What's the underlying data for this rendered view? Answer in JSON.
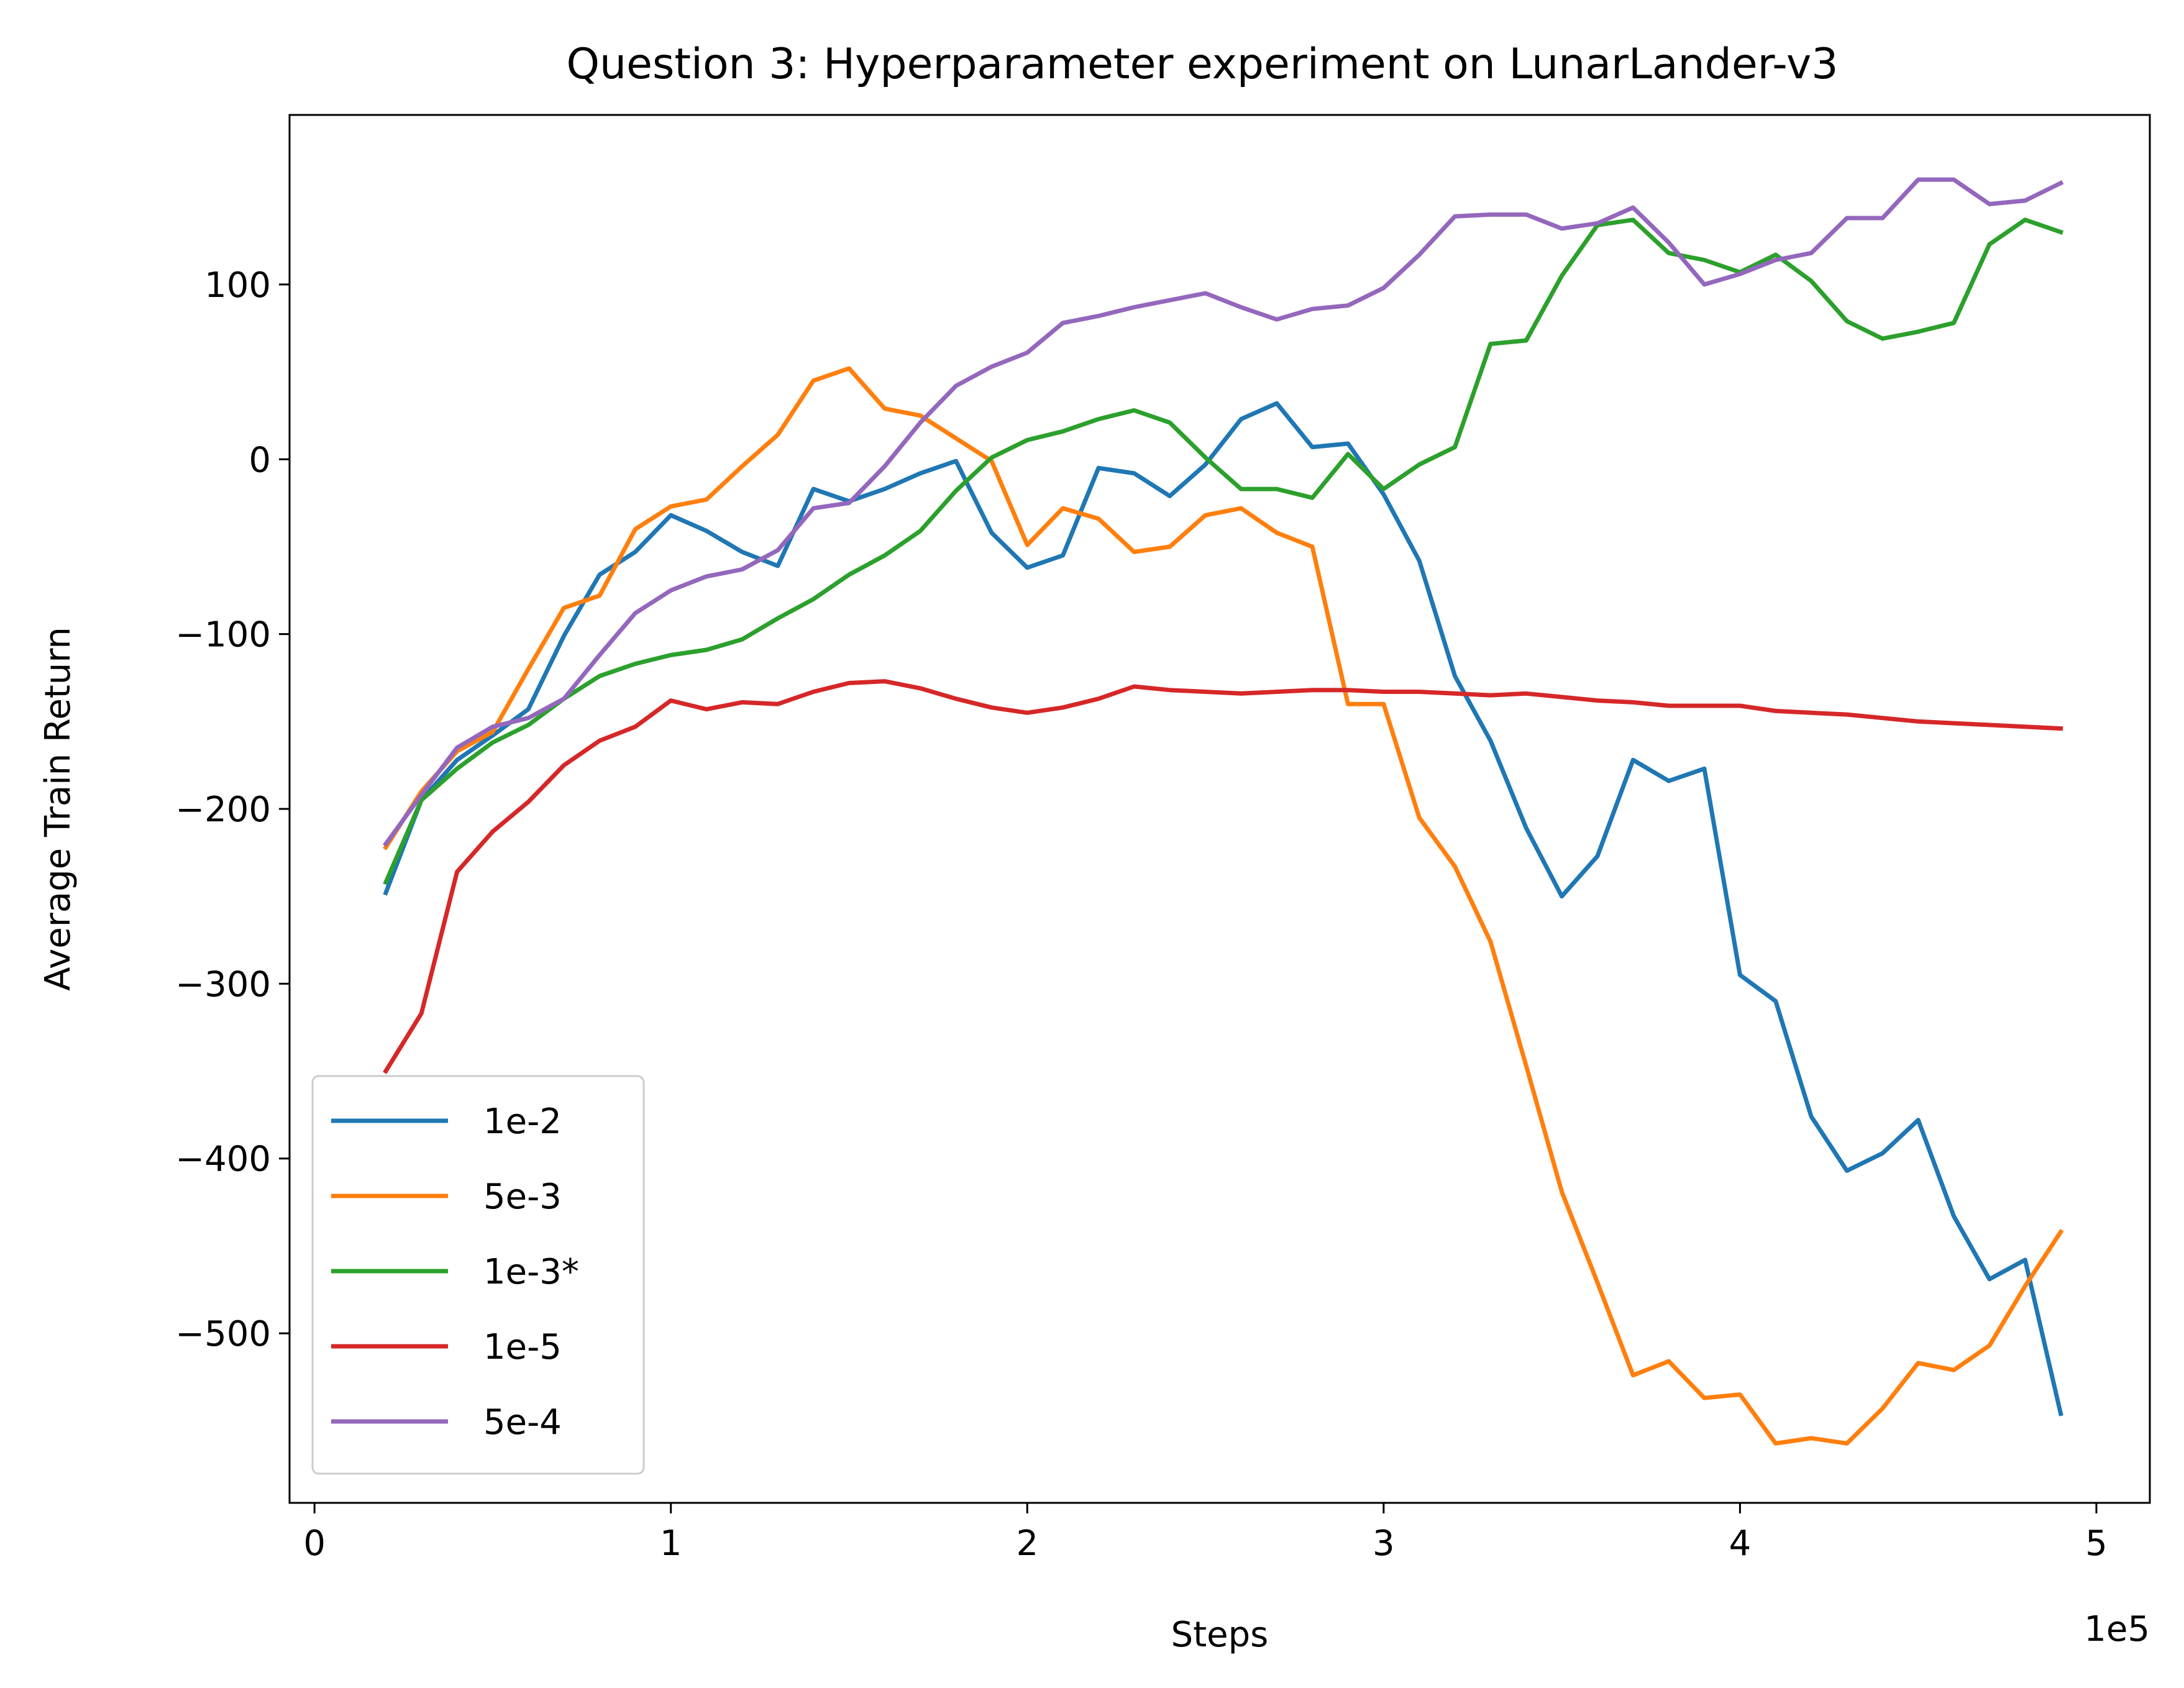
{
  "chart_data": {
    "type": "line",
    "title": "Question 3: Hyperparameter experiment on LunarLander-v3",
    "xlabel": "Steps",
    "ylabel": "Average Train Return",
    "x_offset_label": "1e5",
    "xlim": [
      -0.07,
      5.15
    ],
    "ylim": [
      -597,
      197
    ],
    "xticks": [
      0,
      1,
      2,
      3,
      4,
      5
    ],
    "xtick_labels": [
      "0",
      "1",
      "2",
      "3",
      "4",
      "5"
    ],
    "yticks": [
      -500,
      -400,
      -300,
      -200,
      -100,
      0,
      100
    ],
    "ytick_labels": [
      "−500",
      "−400",
      "−300",
      "−200",
      "−100",
      "0",
      "100"
    ],
    "grid": false,
    "legend_position": "lower-left",
    "x": [
      0.2,
      0.3,
      0.4,
      0.5,
      0.6,
      0.7,
      0.8,
      0.9,
      1.0,
      1.1,
      1.2,
      1.3,
      1.4,
      1.5,
      1.6,
      1.7,
      1.8,
      1.9,
      2.0,
      2.1,
      2.2,
      2.3,
      2.4,
      2.5,
      2.6,
      2.7,
      2.8,
      2.9,
      3.0,
      3.1,
      3.2,
      3.3,
      3.4,
      3.5,
      3.6,
      3.7,
      3.8,
      3.9,
      4.0,
      4.1,
      4.2,
      4.3,
      4.4,
      4.5,
      4.6,
      4.7,
      4.8,
      4.9
    ],
    "series": [
      {
        "name": "1e-2",
        "color": "#1f77b4",
        "values": [
          -248,
          -195,
          -172,
          -158,
          -143,
          -101,
          -66,
          -53,
          -32,
          -41,
          -53,
          -61,
          -17,
          -24,
          -17,
          -8,
          -1,
          -42,
          -62,
          -55,
          -5,
          -8,
          -21,
          -3,
          23,
          32,
          7,
          9,
          -20,
          -58,
          -124,
          -161,
          -211,
          -250,
          -227,
          -172,
          -184,
          -177,
          -295,
          -310,
          -376,
          -407,
          -397,
          -378,
          -433,
          -469,
          -458,
          -546
        ]
      },
      {
        "name": "5e-3",
        "color": "#ff7f0e",
        "values": [
          -222,
          -190,
          -167,
          -156,
          -120,
          -85,
          -78,
          -40,
          -27,
          -23,
          -4,
          14,
          45,
          52,
          29,
          25,
          12,
          -1,
          -49,
          -28,
          -34,
          -53,
          -50,
          -32,
          -28,
          -42,
          -50,
          -140,
          -140,
          -205,
          -233,
          -276,
          -347,
          -419,
          -471,
          -524,
          -516,
          -537,
          -535,
          -563,
          -560,
          -563,
          -543,
          -517,
          -521,
          -507,
          -473,
          -442
        ]
      },
      {
        "name": "1e-3*",
        "color": "#2ca02c",
        "values": [
          -242,
          -195,
          -177,
          -162,
          -152,
          -137,
          -124,
          -117,
          -112,
          -109,
          -103,
          -91,
          -80,
          -66,
          -55,
          -41,
          -18,
          1,
          11,
          16,
          23,
          28,
          21,
          1,
          -17,
          -17,
          -22,
          3,
          -17,
          -3,
          7,
          66,
          68,
          105,
          134,
          137,
          118,
          114,
          107,
          117,
          102,
          79,
          69,
          73,
          78,
          123,
          137,
          130
        ]
      },
      {
        "name": "1e-5",
        "color": "#d62728",
        "values": [
          -350,
          -317,
          -236,
          -213,
          -196,
          -175,
          -161,
          -153,
          -138,
          -143,
          -139,
          -140,
          -133,
          -128,
          -127,
          -131,
          -137,
          -142,
          -145,
          -142,
          -137,
          -130,
          -132,
          -133,
          -134,
          -133,
          -132,
          -132,
          -133,
          -133,
          -134,
          -135,
          -134,
          -136,
          -138,
          -139,
          -141,
          -141,
          -141,
          -144,
          -145,
          -146,
          -148,
          -150,
          -151,
          -152,
          -153,
          -154
        ]
      },
      {
        "name": "5e-4",
        "color": "#9467bd",
        "values": [
          -220,
          -192,
          -165,
          -153,
          -148,
          -137,
          -112,
          -88,
          -75,
          -67,
          -63,
          -52,
          -28,
          -25,
          -4,
          21,
          42,
          53,
          61,
          78,
          82,
          87,
          91,
          95,
          87,
          80,
          86,
          88,
          98,
          117,
          139,
          140,
          140,
          132,
          135,
          144,
          124,
          100,
          106,
          114,
          118,
          138,
          138,
          160,
          160,
          146,
          148,
          158
        ]
      }
    ]
  }
}
